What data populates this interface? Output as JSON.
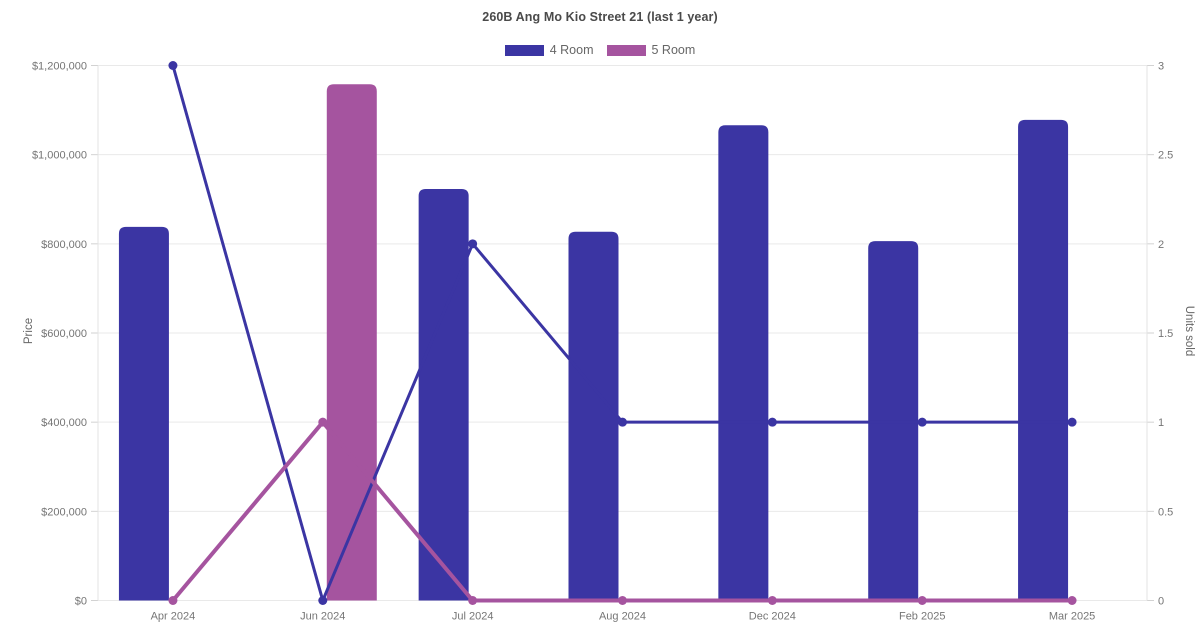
{
  "chart_data": {
    "type": "bar+line",
    "title": "260B Ang Mo Kio Street 21 (last 1 year)",
    "categories": [
      "Apr 2024",
      "Jun 2024",
      "Jul 2024",
      "Aug 2024",
      "Dec 2024",
      "Feb 2025",
      "Mar 2025"
    ],
    "bar_series": [
      {
        "name": "4 Room",
        "axis": "left",
        "color": "#3b35a3",
        "values": [
          838000,
          null,
          923000,
          827000,
          1066000,
          806000,
          1078000
        ]
      },
      {
        "name": "5 Room",
        "axis": "left",
        "color": "#a5549f",
        "values": [
          null,
          1158000,
          null,
          null,
          null,
          null,
          null
        ]
      }
    ],
    "line_series": [
      {
        "name": "4 Room",
        "axis": "right",
        "color": "#3b35a3",
        "values": [
          3,
          0,
          2,
          1,
          1,
          1,
          1
        ]
      },
      {
        "name": "5 Room",
        "axis": "right",
        "color": "#a5549f",
        "values": [
          0,
          1,
          0,
          0,
          0,
          0,
          0
        ]
      }
    ],
    "y_left": {
      "label": "Price",
      "min": 0,
      "max": 1200000,
      "tick_step": 200000,
      "ticks": [
        "$0",
        "$200,000",
        "$400,000",
        "$600,000",
        "$800,000",
        "$1,000,000",
        "$1,200,000"
      ]
    },
    "y_right": {
      "label": "Units sold",
      "min": 0,
      "max": 3,
      "tick_step": 0.5,
      "ticks": [
        "0",
        "0.5",
        "1",
        "1.5",
        "2",
        "2.5",
        "3"
      ]
    },
    "grid": true,
    "legend_position": "top",
    "colors": {
      "grid": "#e9e9e9",
      "axis_line": "#e3e3e3",
      "tick_mark": "#d2d2d2",
      "tick_text": "#757575"
    }
  }
}
